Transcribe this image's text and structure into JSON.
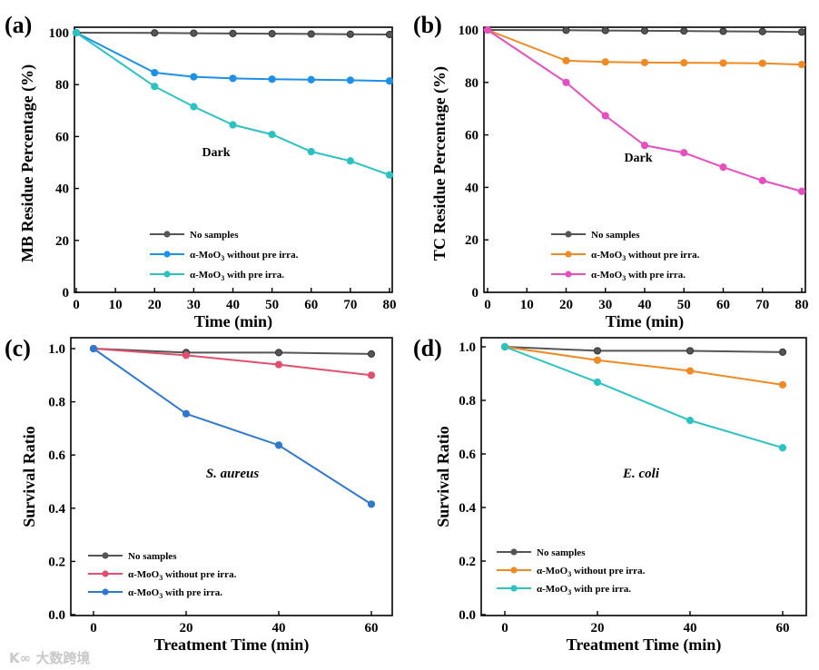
{
  "chart_data": [
    {
      "type": "line",
      "panel_label": "(a)",
      "xlabel": "Time (min)",
      "ylabel": "MB  Residue Percentage (%)",
      "annotation": "Dark",
      "xlim": [
        0,
        80
      ],
      "ylim": [
        0,
        100
      ],
      "xticks": [
        0,
        10,
        20,
        30,
        40,
        50,
        60,
        70,
        80
      ],
      "yticks": [
        0,
        20,
        40,
        60,
        80,
        100
      ],
      "x": [
        0,
        20,
        30,
        40,
        50,
        60,
        70,
        80
      ],
      "legend_position": "bottom-center",
      "series": [
        {
          "name": "No samples",
          "color": "#555555",
          "values": [
            100,
            99.9,
            99.8,
            99.7,
            99.6,
            99.5,
            99.4,
            99.3
          ]
        },
        {
          "name": "α-MoO3 without pre irra.",
          "color": "#1e90e8",
          "values": [
            100,
            84.6,
            83,
            82.4,
            82.1,
            81.9,
            81.7,
            81.4
          ]
        },
        {
          "name": "α-MoO3 with pre irra.",
          "color": "#2cc2c2",
          "values": [
            100,
            79.3,
            71.5,
            64.5,
            60.8,
            54.2,
            50.6,
            45.2
          ]
        }
      ]
    },
    {
      "type": "line",
      "panel_label": "(b)",
      "xlabel": "Time (min)",
      "ylabel": "TC  Residue Percentage (%)",
      "annotation": "Dark",
      "xlim": [
        0,
        80
      ],
      "ylim": [
        0,
        100
      ],
      "xticks": [
        0,
        10,
        20,
        30,
        40,
        50,
        60,
        70,
        80
      ],
      "yticks": [
        0,
        20,
        40,
        60,
        80,
        100
      ],
      "x": [
        0,
        20,
        30,
        40,
        50,
        60,
        70,
        80
      ],
      "legend_position": "bottom-center",
      "series": [
        {
          "name": "No samples",
          "color": "#555555",
          "values": [
            100,
            99.9,
            99.8,
            99.7,
            99.6,
            99.5,
            99.4,
            99.2
          ]
        },
        {
          "name": "α-MoO3 without pre irra.",
          "color": "#f08a24",
          "values": [
            100,
            88.3,
            87.8,
            87.6,
            87.5,
            87.4,
            87.3,
            86.8
          ]
        },
        {
          "name": "α-MoO3 with pre irra.",
          "color": "#e64fbf",
          "values": [
            100,
            80,
            67.3,
            56,
            53.2,
            47.7,
            42.6,
            38.5
          ]
        }
      ]
    },
    {
      "type": "line",
      "panel_label": "(c)",
      "xlabel": "Treatment Time (min)",
      "ylabel": "Survival Ratio",
      "annotation": "S. aureus",
      "xlim": [
        0,
        60
      ],
      "ylim": [
        0,
        1
      ],
      "xticks": [
        0,
        20,
        40,
        60
      ],
      "yticks": [
        0.0,
        0.2,
        0.4,
        0.6,
        0.8,
        1.0
      ],
      "x": [
        0,
        20,
        40,
        60
      ],
      "legend_position": "bottom-left",
      "series": [
        {
          "name": "No samples",
          "color": "#555555",
          "values": [
            1,
            0.985,
            0.985,
            0.98
          ]
        },
        {
          "name": "α-MoO3 without pre irra.",
          "color": "#e0506e",
          "values": [
            1,
            0.975,
            0.94,
            0.9
          ]
        },
        {
          "name": "α-MoO3 with pre irra.",
          "color": "#2f78d0",
          "values": [
            1,
            0.755,
            0.637,
            0.415
          ]
        }
      ]
    },
    {
      "type": "line",
      "panel_label": "(d)",
      "xlabel": "Treatment Time (min)",
      "ylabel": "Survival Ratio",
      "annotation": "E. coli",
      "xlim": [
        0,
        60
      ],
      "ylim": [
        0,
        1
      ],
      "xticks": [
        0,
        20,
        40,
        60
      ],
      "yticks": [
        0.0,
        0.2,
        0.4,
        0.6,
        0.8,
        1.0
      ],
      "x": [
        0,
        20,
        40,
        60
      ],
      "legend_position": "bottom-left",
      "series": [
        {
          "name": "No samples",
          "color": "#555555",
          "values": [
            1,
            0.985,
            0.985,
            0.98
          ]
        },
        {
          "name": "α-MoO3 without pre irra.",
          "color": "#f08a24",
          "values": [
            1,
            0.95,
            0.91,
            0.858
          ]
        },
        {
          "name": "α-MoO3 with pre irra.",
          "color": "#2cc2c2",
          "values": [
            1,
            0.868,
            0.725,
            0.623
          ]
        }
      ]
    }
  ],
  "watermark": "大数跨境"
}
